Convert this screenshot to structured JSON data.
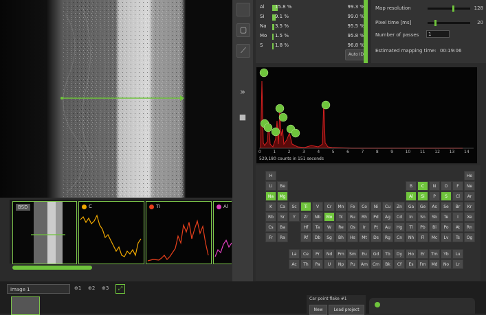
{
  "elements": [
    {
      "symbol": "Al",
      "percent": "15.8 %",
      "confidence": "99.3 %",
      "bar": 0.15
    },
    {
      "symbol": "Si",
      "percent": "9.1 %",
      "confidence": "99.0 %",
      "bar": 0.08
    },
    {
      "symbol": "Na",
      "percent": "3.5 %",
      "confidence": "95.5 %",
      "bar": 0.04
    },
    {
      "symbol": "Mo",
      "percent": "1.5 %",
      "confidence": "95.8 %",
      "bar": 0.02
    },
    {
      "symbol": "S",
      "percent": "1.8 %",
      "confidence": "96.8 %",
      "bar": 0.02
    }
  ],
  "auto_id_label": "Auto ID",
  "mapping": {
    "resolution_label": "Map resolution",
    "resolution_value": "128",
    "resolution_level": 0.6,
    "pixel_time_label": "Pixel time [ms]",
    "pixel_time_value": "20",
    "pixel_time_level": 0.15,
    "passes_label": "Number of passes",
    "passes_value": "1",
    "estimated_label": "Estimated mapping time:",
    "estimated_value": "00:19:06"
  },
  "strip": {
    "bsd_label": "BSD",
    "profiles": [
      {
        "name": "C",
        "color": "#f0a800"
      },
      {
        "name": "Ti",
        "color": "#e8401c"
      },
      {
        "name": "Al",
        "color": "#e040c0"
      }
    ]
  },
  "spectrum": {
    "counts_text": "529,180 counts in 151 seconds",
    "ticks": [
      "0",
      "1",
      "2",
      "3",
      "4",
      "5",
      "6",
      "7",
      "8",
      "9",
      "10",
      "11",
      "12",
      "13",
      "14"
    ],
    "color": "#d42020"
  },
  "periodic": [
    [
      "H",
      "",
      "",
      "",
      "",
      "",
      "",
      "",
      "",
      "",
      "",
      "",
      "",
      "",
      "",
      "",
      "",
      "He"
    ],
    [
      "Li",
      "Be",
      "",
      "",
      "",
      "",
      "",
      "",
      "",
      "",
      "",
      "",
      "B",
      "C",
      "N",
      "O",
      "F",
      "Ne"
    ],
    [
      "Na",
      "Mg",
      "",
      "",
      "",
      "",
      "",
      "",
      "",
      "",
      "",
      "",
      "Al",
      "Si",
      "P",
      "S",
      "Cl",
      "Ar"
    ],
    [
      "K",
      "Ca",
      "Sc",
      "Ti",
      "V",
      "Cr",
      "Mn",
      "Fe",
      "Co",
      "Ni",
      "Cu",
      "Zn",
      "Ga",
      "Ge",
      "As",
      "Se",
      "Br",
      "Kr"
    ],
    [
      "Rb",
      "Sr",
      "Y",
      "Zr",
      "Nb",
      "Mo",
      "Tc",
      "Ru",
      "Rh",
      "Pd",
      "Ag",
      "Cd",
      "In",
      "Sn",
      "Sb",
      "Te",
      "I",
      "Xe"
    ],
    [
      "Cs",
      "Ba",
      "",
      "Hf",
      "Ta",
      "W",
      "Re",
      "Os",
      "Ir",
      "Pt",
      "Au",
      "Hg",
      "Tl",
      "Pb",
      "Bi",
      "Po",
      "At",
      "Rn"
    ],
    [
      "Fr",
      "Ra",
      "",
      "Rf",
      "Db",
      "Sg",
      "Bh",
      "Hs",
      "Mt",
      "Ds",
      "Rg",
      "Cn",
      "Nh",
      "Fl",
      "Mc",
      "Lv",
      "Ts",
      "Og"
    ]
  ],
  "lanthanides": [
    "La",
    "Ce",
    "Pr",
    "Nd",
    "Pm",
    "Sm",
    "Eu",
    "Gd",
    "Tb",
    "Dy",
    "Ho",
    "Er",
    "Tm",
    "Yb",
    "Lu"
  ],
  "actinides": [
    "Ac",
    "Th",
    "Pa",
    "U",
    "Np",
    "Pu",
    "Am",
    "Cm",
    "Bk",
    "Cf",
    "Es",
    "Fm",
    "Md",
    "No",
    "Lr"
  ],
  "selected": [
    "Na",
    "Mg",
    "Ti",
    "Mo",
    "Al",
    "Si",
    "S",
    "C"
  ],
  "bottom": {
    "image_tab": "Image 1",
    "tab_icons": [
      "⊕1",
      "⊕2",
      "⊕3"
    ],
    "project_title": "Car point flake #1",
    "new_label": "New",
    "load_label": "Load project"
  }
}
